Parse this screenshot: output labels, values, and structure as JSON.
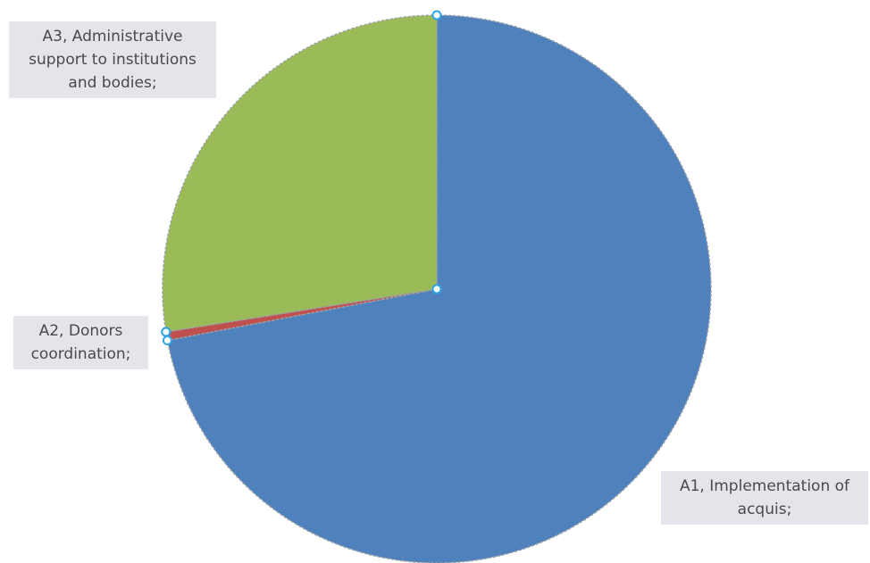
{
  "chart_data": {
    "type": "pie",
    "title": "",
    "slices": [
      {
        "label": "A1, Implementation of acquis;",
        "value": 72.0,
        "color": "#4f81bd"
      },
      {
        "label": "A2, Donors coordination;",
        "value": 0.5,
        "color": "#c0504d"
      },
      {
        "label": "A3, Administrative support to institutions and bodies;",
        "value": 27.5,
        "color": "#9bbb59"
      }
    ],
    "start": "12 o'clock",
    "direction": "clockwise",
    "legend": "none"
  }
}
